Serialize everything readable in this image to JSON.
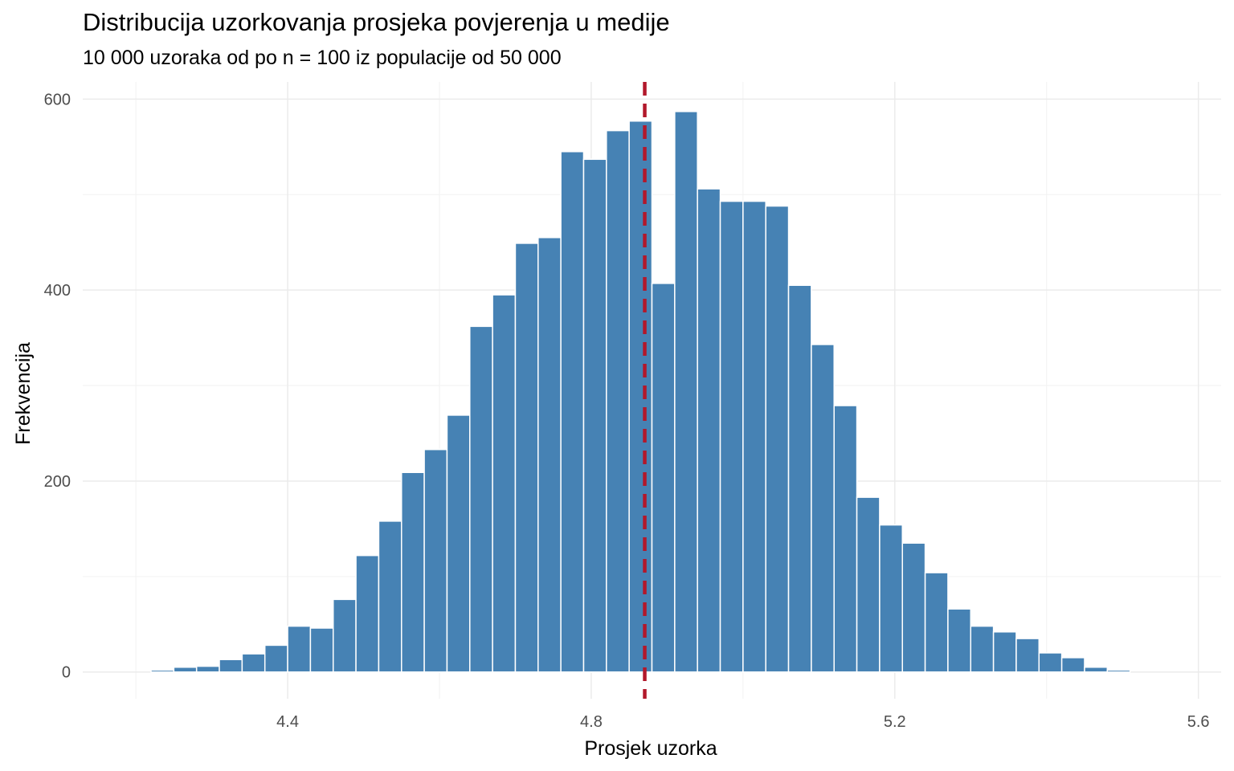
{
  "chart_data": {
    "type": "bar",
    "title": "Distribucija uzorkovanja prosjeka povjerenja u medije",
    "subtitle": "10 000 uzoraka od po n = 100 iz populacije od 50 000",
    "xlabel": "Prosjek uzorka",
    "ylabel": "Frekvencija",
    "xlim": [
      4.13,
      5.63
    ],
    "ylim": [
      -28,
      618
    ],
    "x_ticks": [
      4.4,
      4.8,
      5.2,
      5.6
    ],
    "x_tick_labels": [
      "4.4",
      "4.8",
      "5.2",
      "5.6"
    ],
    "y_ticks": [
      0,
      200,
      400,
      600
    ],
    "y_tick_labels": [
      "0",
      "200",
      "400",
      "600"
    ],
    "grid": true,
    "bin_width": 0.03,
    "bin_start": 4.22,
    "counts": [
      2,
      5,
      6,
      13,
      19,
      28,
      48,
      46,
      76,
      122,
      158,
      209,
      233,
      269,
      362,
      395,
      449,
      455,
      545,
      537,
      567,
      577,
      407,
      587,
      506,
      493,
      493,
      488,
      405,
      343,
      279,
      183,
      154,
      135,
      104,
      66,
      48,
      42,
      35,
      20,
      15,
      5,
      2
    ],
    "bar_color": "#4682B4",
    "reference_line": {
      "x": 4.8705,
      "color": "#B2182B",
      "style": "dashed"
    }
  }
}
